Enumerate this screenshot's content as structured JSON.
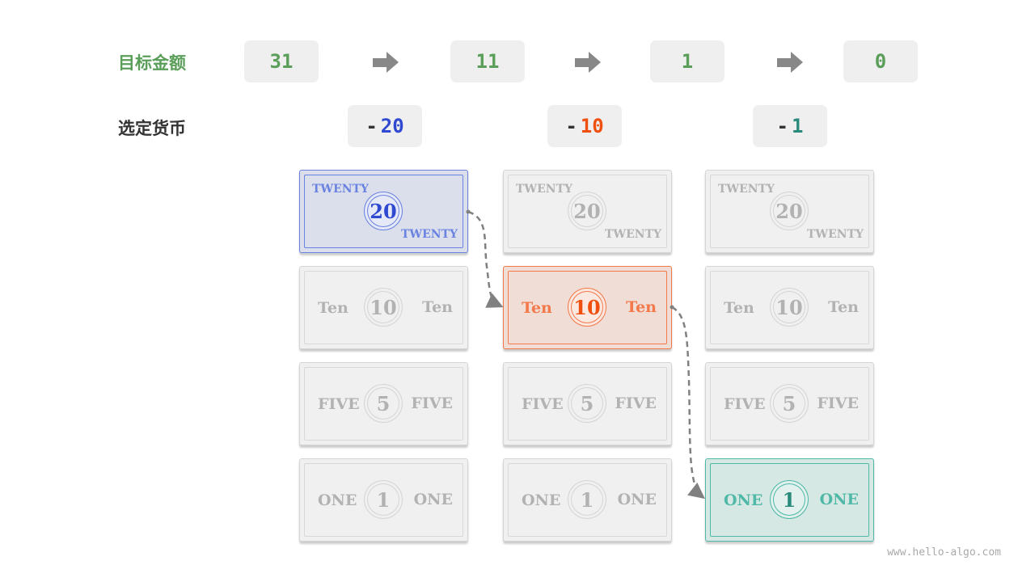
{
  "labels": {
    "target": "目标金额",
    "selected": "选定货币"
  },
  "amounts": [
    "31",
    "11",
    "1",
    "0"
  ],
  "subtractions": [
    {
      "sign": "-",
      "value": "20",
      "color": "#2f4ad0"
    },
    {
      "sign": "-",
      "value": "10",
      "color": "#f0500f"
    },
    {
      "sign": "-",
      "value": "1",
      "color": "#2a8b7c"
    }
  ],
  "bills": [
    {
      "word": "TWENTY",
      "value": "20"
    },
    {
      "word": "Ten",
      "value": "10"
    },
    {
      "word": "FIVE",
      "value": "5"
    },
    {
      "word": "ONE",
      "value": "1"
    }
  ],
  "selected_bill_per_step": [
    0,
    1,
    3
  ],
  "highlight_colors": [
    {
      "border": "#6a82e0",
      "bg": "#dbdfec",
      "text": "#6a82e0",
      "num": "#2f4ad0"
    },
    {
      "border": "#f3784a",
      "bg": "#f0ddd6",
      "text": "#f3784a",
      "num": "#f0500f"
    },
    {
      "border": "#4fb8a6",
      "bg": "#d6e8e4",
      "text": "#4fb8a6",
      "num": "#2a8b7c"
    }
  ],
  "colors": {
    "target_label": "#5a9e5a",
    "amount": "#5a9e5a",
    "selected_label": "#333333"
  },
  "footer": "www.hello-algo.com"
}
